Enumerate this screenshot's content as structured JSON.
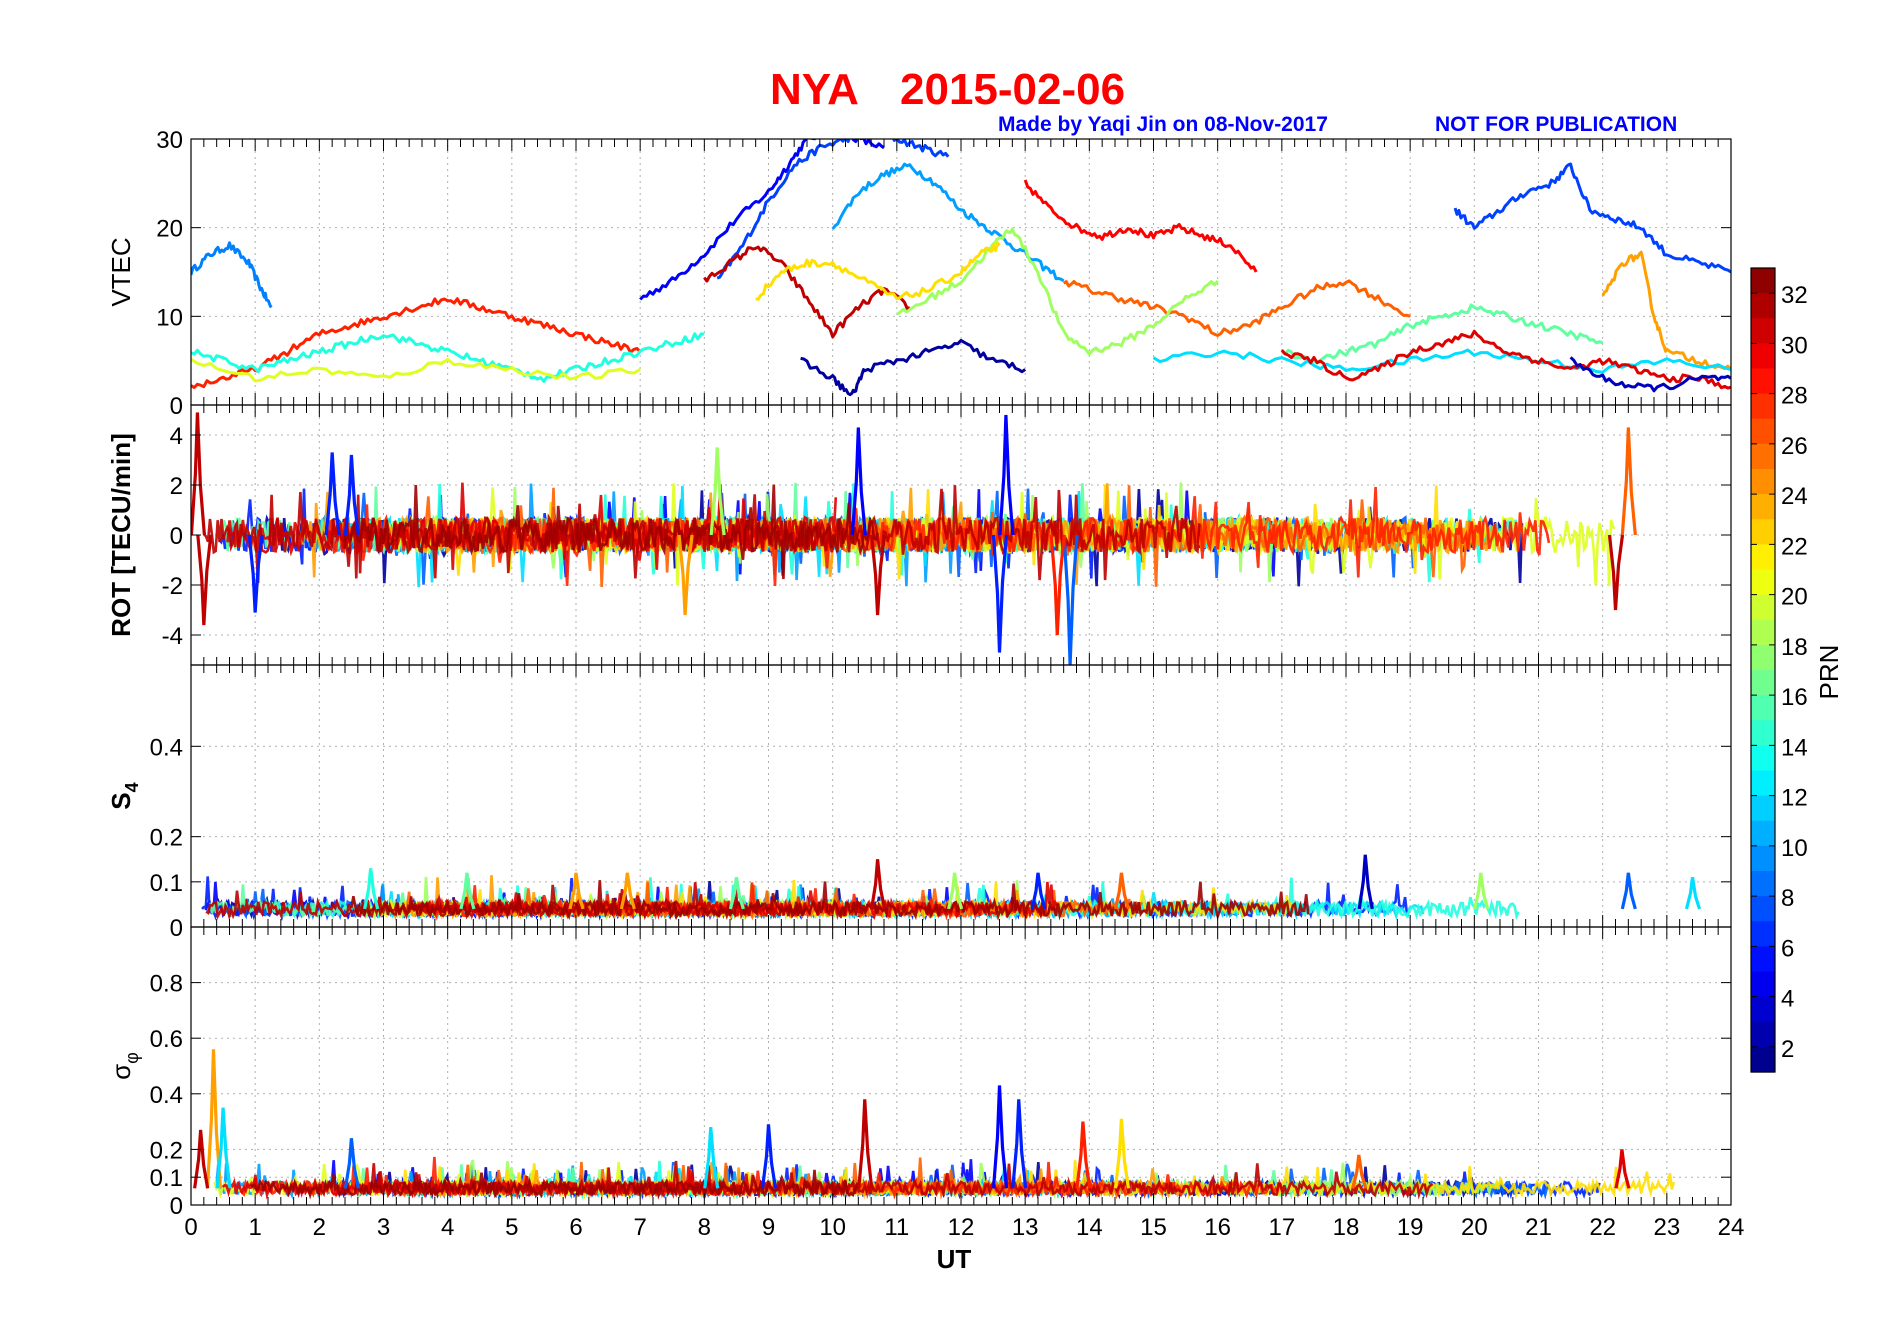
{
  "title": {
    "station": "NYA",
    "date": "2015-02-06",
    "credit": "Made by Yaqi Jin on 08-Nov-2017",
    "notice": "NOT FOR PUBLICATION",
    "title_color": "#ff0000",
    "credit_color": "#0000ff"
  },
  "chart_data": [
    {
      "id": "vtec",
      "type": "line",
      "ylabel": "VTEC",
      "ylim": [
        0,
        30
      ],
      "yticks": [
        0,
        10,
        20,
        30
      ],
      "series": [
        {
          "prn": 9,
          "x": [
            0,
            0.3,
            0.6,
            0.9,
            1.1,
            1.25
          ],
          "values": [
            15,
            17,
            18,
            16,
            13,
            11
          ]
        },
        {
          "prn": 5,
          "x": [
            7,
            7.5,
            8,
            8.5,
            9,
            9.3,
            9.6,
            10,
            10.4,
            10.8
          ],
          "values": [
            12,
            14,
            17,
            21,
            24,
            27,
            30,
            31,
            30,
            29
          ]
        },
        {
          "prn": 7,
          "x": [
            8.2,
            8.6,
            9,
            9.4,
            9.8,
            10.2,
            10.6,
            11,
            11.4,
            11.8
          ],
          "values": [
            14,
            18,
            23,
            27,
            29,
            30,
            31,
            30,
            29,
            28
          ]
        },
        {
          "prn": 10,
          "x": [
            10,
            10.4,
            10.8,
            11.2,
            11.6,
            12,
            12.4,
            12.8,
            13.2,
            13.6
          ],
          "values": [
            20,
            24,
            26,
            27,
            25,
            22,
            20,
            18,
            16,
            14
          ]
        },
        {
          "prn": 7,
          "x": [
            19.7,
            20,
            20.4,
            20.8,
            21.2,
            21.5,
            21.8,
            22.2,
            22.6,
            23,
            23.5,
            24
          ],
          "values": [
            22,
            20,
            22,
            24,
            25,
            27,
            22,
            21,
            20,
            17,
            16,
            15
          ]
        },
        {
          "prn": 29,
          "x": [
            13,
            13.4,
            13.8,
            14.2,
            14.6,
            15,
            15.4,
            15.8,
            16.2,
            16.6
          ],
          "values": [
            25,
            22,
            20,
            19,
            20,
            19,
            20,
            19,
            18,
            15
          ]
        },
        {
          "prn": 31,
          "x": [
            8,
            8.4,
            8.8,
            9.2,
            9.6,
            10,
            10.4,
            10.8,
            11.2
          ],
          "values": [
            14,
            16,
            18,
            16,
            12,
            8,
            11,
            13,
            11
          ]
        },
        {
          "prn": 28,
          "x": [
            0,
            0.5,
            1,
            1.5,
            2,
            2.5,
            3,
            3.5,
            4,
            4.5,
            5,
            5.5,
            6,
            6.5,
            7
          ],
          "values": [
            2,
            3,
            4,
            6,
            8,
            9,
            10,
            11,
            12,
            11,
            10,
            9,
            8,
            7,
            6
          ]
        },
        {
          "prn": 26,
          "x": [
            13.6,
            14,
            14.5,
            15,
            15.5,
            16,
            16.5,
            17,
            17.5,
            18,
            18.5,
            19
          ],
          "values": [
            14,
            13,
            12,
            11,
            10,
            8,
            9,
            11,
            13,
            14,
            12,
            10
          ]
        },
        {
          "prn": 18,
          "x": [
            11,
            11.5,
            12,
            12.5,
            12.8,
            13.2,
            13.6,
            14,
            14.5,
            15,
            15.5,
            16
          ],
          "values": [
            10,
            12,
            14,
            18,
            20,
            15,
            8,
            6,
            7,
            9,
            12,
            14
          ]
        },
        {
          "prn": 22,
          "x": [
            8.8,
            9.2,
            9.6,
            10,
            10.5,
            11,
            11.5,
            12,
            12.3,
            12.6
          ],
          "values": [
            12,
            15,
            16,
            16,
            14,
            12,
            13,
            15,
            17,
            18
          ]
        },
        {
          "prn": 24,
          "x": [
            22,
            22.3,
            22.6,
            22.8,
            23,
            23.5,
            24
          ],
          "values": [
            12,
            16,
            17,
            10,
            6,
            5,
            4
          ]
        },
        {
          "prn": 2,
          "x": [
            9.5,
            10,
            10.3,
            10.5,
            11,
            11.5,
            12,
            12.5,
            13
          ],
          "values": [
            5,
            3,
            1,
            4,
            5,
            6,
            7,
            5,
            4
          ]
        },
        {
          "prn": 14,
          "x": [
            0,
            0.5,
            1,
            1.5,
            2,
            2.5,
            3,
            3.5,
            4,
            4.5,
            5,
            5.5,
            6,
            6.5,
            7,
            7.5,
            8
          ],
          "values": [
            6,
            5,
            4,
            5,
            6,
            7,
            8,
            7,
            6,
            5,
            4,
            3,
            4,
            5,
            6,
            7,
            8
          ]
        },
        {
          "prn": 20,
          "x": [
            0,
            1,
            2,
            3,
            4,
            5,
            6,
            7
          ],
          "values": [
            5,
            3,
            4,
            3,
            5,
            4,
            3,
            4
          ]
        },
        {
          "prn": 16,
          "x": [
            17,
            17.5,
            18,
            18.5,
            19,
            19.5,
            20,
            20.5,
            21,
            21.5,
            22
          ],
          "values": [
            6,
            5,
            6,
            7,
            9,
            10,
            11,
            10,
            9,
            8,
            7
          ]
        },
        {
          "prn": 12,
          "x": [
            15,
            16,
            17,
            18,
            19,
            20,
            21,
            22,
            23,
            24
          ],
          "values": [
            5,
            6,
            5,
            4,
            5,
            6,
            5,
            4,
            5,
            4
          ]
        },
        {
          "prn": 30,
          "x": [
            17,
            17.5,
            18,
            18.5,
            19,
            19.5,
            20,
            20.5,
            21,
            21.5,
            22,
            22.5,
            23,
            23.5,
            24
          ],
          "values": [
            6,
            5,
            3,
            4,
            6,
            7,
            8,
            6,
            5,
            4,
            5,
            4,
            3,
            3,
            2
          ]
        },
        {
          "prn": 3,
          "x": [
            21.5,
            22,
            22.5,
            23,
            23.5,
            24
          ],
          "values": [
            5,
            3,
            2,
            2,
            3,
            3
          ]
        }
      ]
    },
    {
      "id": "rot",
      "type": "line",
      "ylabel": "ROT [TECU/min]",
      "ylim": [
        -5.2,
        5.2
      ],
      "yticks": [
        -4,
        -2,
        0,
        2,
        4
      ],
      "note": "noise-like fluctuations around zero; notable spikes listed",
      "spikes": [
        {
          "x": 0.1,
          "y": 4.9,
          "prn": 31
        },
        {
          "x": 0.2,
          "y": -3.6,
          "prn": 31
        },
        {
          "x": 2.2,
          "y": 3.3,
          "prn": 6
        },
        {
          "x": 2.5,
          "y": 3.2,
          "prn": 6
        },
        {
          "x": 8.2,
          "y": 3.5,
          "prn": 18
        },
        {
          "x": 10.4,
          "y": 4.3,
          "prn": 5
        },
        {
          "x": 10.7,
          "y": -3.2,
          "prn": 31
        },
        {
          "x": 12.7,
          "y": 4.8,
          "prn": 5
        },
        {
          "x": 12.6,
          "y": -4.7,
          "prn": 6
        },
        {
          "x": 13.7,
          "y": -5.2,
          "prn": 8
        },
        {
          "x": 13.5,
          "y": -4.0,
          "prn": 28
        },
        {
          "x": 7.7,
          "y": -3.2,
          "prn": 24
        },
        {
          "x": 22.4,
          "y": 4.3,
          "prn": 26
        },
        {
          "x": 22.2,
          "y": -3.0,
          "prn": 31
        },
        {
          "x": 1.0,
          "y": -3.1,
          "prn": 6
        }
      ]
    },
    {
      "id": "s4",
      "type": "line",
      "ylabel": "S4",
      "ylim": [
        0,
        0.58
      ],
      "yticks": [
        0,
        0.1,
        0.2,
        0.4
      ],
      "baseline": 0.04,
      "spikes": [
        {
          "x": 2.8,
          "y": 0.13,
          "prn": 14
        },
        {
          "x": 4.3,
          "y": 0.12,
          "prn": 16
        },
        {
          "x": 6.0,
          "y": 0.12,
          "prn": 24
        },
        {
          "x": 6.8,
          "y": 0.12,
          "prn": 24
        },
        {
          "x": 8.5,
          "y": 0.11,
          "prn": 16
        },
        {
          "x": 10.7,
          "y": 0.15,
          "prn": 31
        },
        {
          "x": 11.9,
          "y": 0.12,
          "prn": 18
        },
        {
          "x": 13.2,
          "y": 0.12,
          "prn": 6
        },
        {
          "x": 14.5,
          "y": 0.12,
          "prn": 26
        },
        {
          "x": 18.3,
          "y": 0.16,
          "prn": 3
        },
        {
          "x": 20.1,
          "y": 0.12,
          "prn": 18
        },
        {
          "x": 22.4,
          "y": 0.12,
          "prn": 8
        },
        {
          "x": 23.4,
          "y": 0.11,
          "prn": 12
        }
      ]
    },
    {
      "id": "sigma_phi",
      "type": "line",
      "ylabel": "σφ",
      "ylim": [
        0,
        1
      ],
      "yticks": [
        0,
        0.1,
        0.2,
        0.4,
        0.6,
        0.8
      ],
      "baseline": 0.06,
      "spikes": [
        {
          "x": 0.35,
          "y": 0.56,
          "prn": 24
        },
        {
          "x": 0.5,
          "y": 0.35,
          "prn": 12
        },
        {
          "x": 0.15,
          "y": 0.27,
          "prn": 31
        },
        {
          "x": 2.5,
          "y": 0.24,
          "prn": 8
        },
        {
          "x": 8.1,
          "y": 0.28,
          "prn": 12
        },
        {
          "x": 9.0,
          "y": 0.29,
          "prn": 6
        },
        {
          "x": 10.5,
          "y": 0.38,
          "prn": 31
        },
        {
          "x": 12.6,
          "y": 0.43,
          "prn": 5
        },
        {
          "x": 12.9,
          "y": 0.38,
          "prn": 6
        },
        {
          "x": 13.9,
          "y": 0.3,
          "prn": 28
        },
        {
          "x": 14.5,
          "y": 0.31,
          "prn": 22
        },
        {
          "x": 18.2,
          "y": 0.18,
          "prn": 26
        },
        {
          "x": 22.3,
          "y": 0.2,
          "prn": 30
        }
      ]
    }
  ],
  "xaxis": {
    "label": "UT",
    "xlim": [
      0,
      24
    ],
    "ticks": [
      "0",
      "1",
      "2",
      "3",
      "4",
      "5",
      "6",
      "7",
      "8",
      "9",
      "10",
      "11",
      "12",
      "13",
      "14",
      "15",
      "16",
      "17",
      "18",
      "19",
      "20",
      "21",
      "22",
      "23",
      "24"
    ]
  },
  "colorbar": {
    "label": "PRN",
    "range": [
      1,
      33
    ],
    "ticks": [
      "2",
      "4",
      "6",
      "8",
      "10",
      "12",
      "14",
      "16",
      "18",
      "20",
      "22",
      "24",
      "26",
      "28",
      "30",
      "32"
    ],
    "colormap": "jet"
  }
}
